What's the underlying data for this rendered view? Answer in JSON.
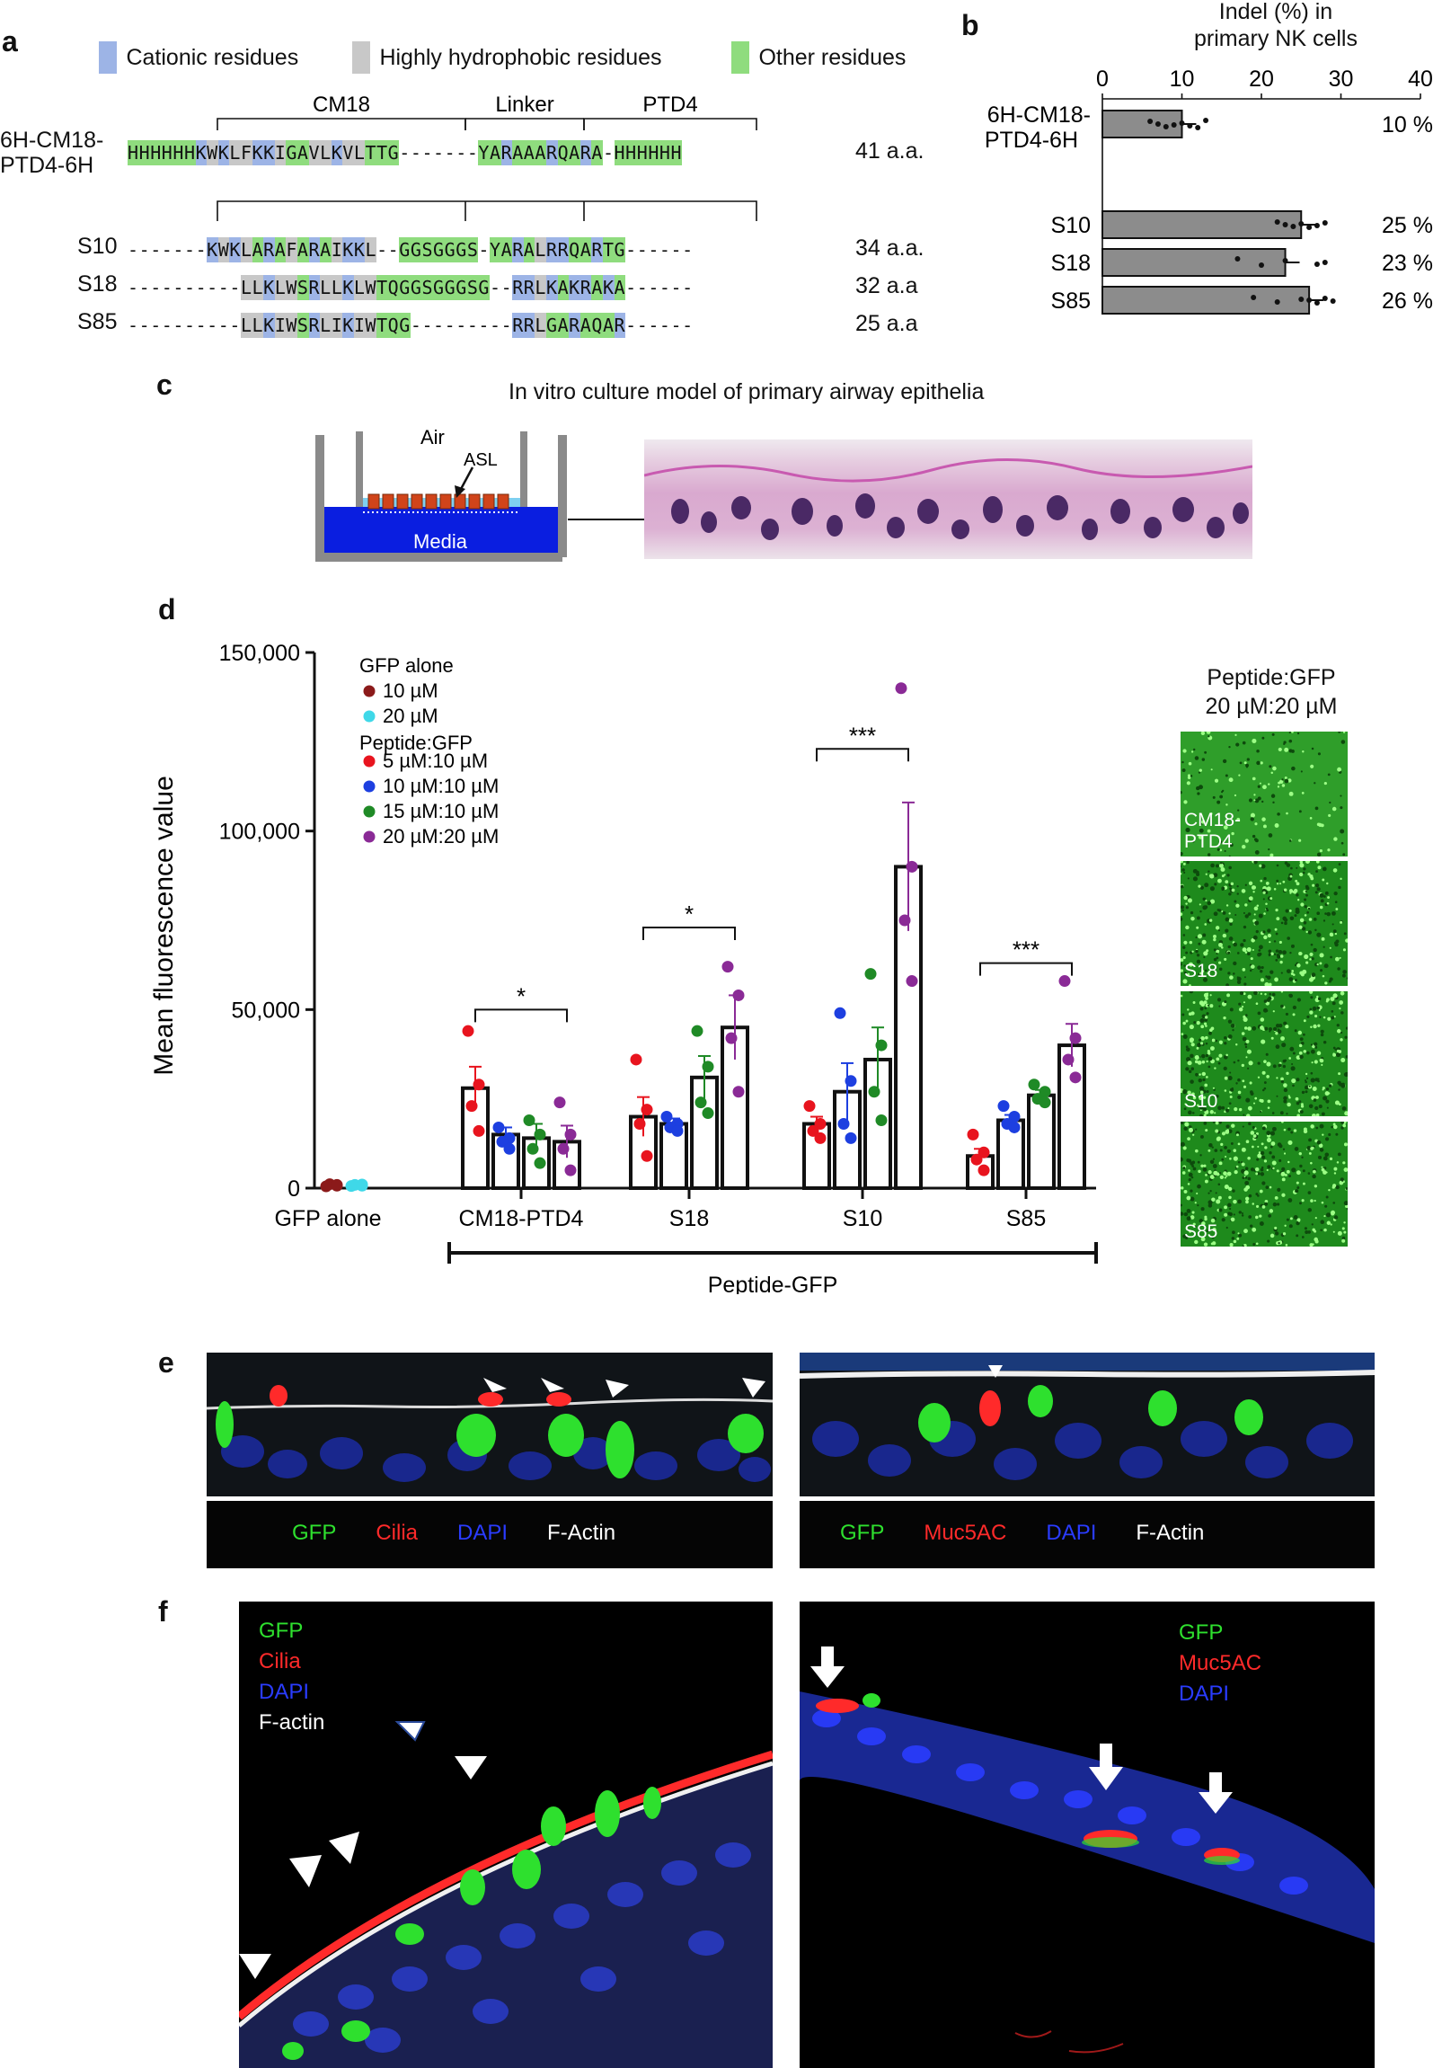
{
  "panels": {
    "a": "a",
    "b": "b",
    "c": "c",
    "d": "d",
    "e": "e",
    "f": "f"
  },
  "panel_a": {
    "legend": [
      {
        "label": "Cationic residues",
        "color": "#9db4e6"
      },
      {
        "label": "Highly hydrophobic residues",
        "color": "#c8c8c8"
      },
      {
        "label": "Other residues",
        "color": "#8fdc7e"
      }
    ],
    "domains": [
      "CM18",
      "Linker",
      "PTD4"
    ],
    "rows": [
      {
        "name": "6H-CM18-\nPTD4-6H",
        "seq": "HHHHHHKWKLFKKIGAVLKVLTTG-------YARAAARQARA-HHHHHH",
        "len": "41 a.a."
      },
      {
        "name": "S10",
        "seq": "-------KWKLARAFARAIKKL--GGSGGGS-YARALRRQARTG------",
        "len": "34 a.a."
      },
      {
        "name": "S18",
        "seq": "----------LLKLWSRLLKLWTQGGSGGGSG--RRLKAKRAKA------",
        "len": "32 a.a"
      },
      {
        "name": "S85",
        "seq": "----------LLKIWSRLIKIWTQG---------RRLGARAQAR------",
        "len": "25 a.a"
      }
    ]
  },
  "panel_b": {
    "title_line1": "Indel (%) in",
    "title_line2": "primary NK cells",
    "ticks": [
      "0",
      "10",
      "20",
      "30",
      "40"
    ],
    "bars": [
      {
        "label_line1": "6H-CM18-",
        "label_line2": "PTD4-6H",
        "value": 10,
        "pct": "10 %"
      },
      {
        "label_line1": "S10",
        "label_line2": "",
        "value": 25,
        "pct": "25 %"
      },
      {
        "label_line1": "S18",
        "label_line2": "",
        "value": 23,
        "pct": "23 %"
      },
      {
        "label_line1": "S85",
        "label_line2": "",
        "value": 26,
        "pct": "26 %"
      }
    ]
  },
  "panel_c": {
    "title": "In vitro culture model of primary airway epithelia",
    "air": "Air",
    "asl": "ASL",
    "media": "Media"
  },
  "chart_data": {
    "type": "bar",
    "ylabel": "Mean fluorescence value",
    "ylim": [
      0,
      150000
    ],
    "yticks": [
      "0",
      "50,000",
      "100,000",
      "150,000"
    ],
    "groups": [
      "GFP alone",
      "CM18-PTD4",
      "S18",
      "S10",
      "S85"
    ],
    "bracket_label": "Peptide-GFP",
    "legend_header1": "GFP alone",
    "legend_header2": "Peptide:GFP",
    "series": [
      {
        "name": "10 µM",
        "color": "#8b1a1a",
        "group": "GFP alone"
      },
      {
        "name": "20 µM",
        "color": "#3fd8e8",
        "group": "GFP alone"
      },
      {
        "name": "5 µM:10 µM",
        "color": "#e8141e",
        "group": "Peptide:GFP"
      },
      {
        "name": "10 µM:10 µM",
        "color": "#1d3fe0",
        "group": "Peptide:GFP"
      },
      {
        "name": "15 µM:10 µM",
        "color": "#1f8a26",
        "group": "Peptide:GFP"
      },
      {
        "name": "20 µM:20 µM",
        "color": "#8a2a96",
        "group": "Peptide:GFP"
      }
    ],
    "bars": [
      {
        "group": 0,
        "series": 0,
        "mean": 800,
        "sem": 300,
        "points": [
          500,
          900,
          1100,
          700
        ]
      },
      {
        "group": 0,
        "series": 1,
        "mean": 800,
        "sem": 300,
        "points": [
          600,
          1000,
          900,
          700
        ]
      },
      {
        "group": 1,
        "series": 2,
        "mean": 28000,
        "sem": 6000,
        "points": [
          44000,
          29000,
          23000,
          16000
        ]
      },
      {
        "group": 1,
        "series": 3,
        "mean": 15000,
        "sem": 2000,
        "points": [
          17000,
          14000,
          13000,
          11000
        ]
      },
      {
        "group": 1,
        "series": 4,
        "mean": 14000,
        "sem": 4000,
        "points": [
          19000,
          15000,
          11000,
          7000
        ]
      },
      {
        "group": 1,
        "series": 5,
        "mean": 13000,
        "sem": 4500,
        "points": [
          24000,
          15000,
          11000,
          5000
        ]
      },
      {
        "group": 2,
        "series": 2,
        "mean": 20000,
        "sem": 5500,
        "points": [
          36000,
          22000,
          18000,
          9000
        ]
      },
      {
        "group": 2,
        "series": 3,
        "mean": 18000,
        "sem": 1500,
        "points": [
          20000,
          18000,
          17000,
          16000
        ]
      },
      {
        "group": 2,
        "series": 4,
        "mean": 31000,
        "sem": 6000,
        "points": [
          44000,
          34000,
          24000,
          21000
        ]
      },
      {
        "group": 2,
        "series": 5,
        "mean": 45000,
        "sem": 9000,
        "points": [
          62000,
          54000,
          42000,
          27000
        ]
      },
      {
        "group": 3,
        "series": 2,
        "mean": 18000,
        "sem": 2000,
        "points": [
          23000,
          18000,
          16000,
          14000
        ]
      },
      {
        "group": 3,
        "series": 3,
        "mean": 27000,
        "sem": 8000,
        "points": [
          49000,
          30000,
          18000,
          14000
        ]
      },
      {
        "group": 3,
        "series": 4,
        "mean": 36000,
        "sem": 9000,
        "points": [
          60000,
          40000,
          27000,
          19000
        ]
      },
      {
        "group": 3,
        "series": 5,
        "mean": 90000,
        "sem": 18000,
        "points": [
          140000,
          90000,
          75000,
          58000
        ]
      },
      {
        "group": 4,
        "series": 2,
        "mean": 9000,
        "sem": 2000,
        "points": [
          15000,
          10000,
          8000,
          5000
        ]
      },
      {
        "group": 4,
        "series": 3,
        "mean": 19000,
        "sem": 1500,
        "points": [
          23000,
          20000,
          18000,
          17000
        ]
      },
      {
        "group": 4,
        "series": 4,
        "mean": 26000,
        "sem": 1500,
        "points": [
          29000,
          27000,
          25000,
          24000
        ]
      },
      {
        "group": 4,
        "series": 5,
        "mean": 40000,
        "sem": 6000,
        "points": [
          58000,
          42000,
          36000,
          31000
        ]
      }
    ],
    "significance": [
      {
        "group": 1,
        "label": "*"
      },
      {
        "group": 2,
        "label": "*"
      },
      {
        "group": 3,
        "label": "***"
      },
      {
        "group": 4,
        "label": "***"
      }
    ]
  },
  "panel_d_images": {
    "title_line1": "Peptide:GFP",
    "title_line2": "20 µM:20 µM",
    "tiles": [
      {
        "label_line1": "CM18-",
        "label_line2": "PTD4"
      },
      {
        "label_line1": "S18",
        "label_line2": ""
      },
      {
        "label_line1": "S10",
        "label_line2": ""
      },
      {
        "label_line1": "S85",
        "label_line2": ""
      }
    ]
  },
  "panel_e": {
    "left_legend": [
      {
        "text": "GFP",
        "color": "#2ee02e"
      },
      {
        "text": "Cilia",
        "color": "#ff2a2a"
      },
      {
        "text": "DAPI",
        "color": "#2a3cff"
      },
      {
        "text": "F-Actin",
        "color": "#ffffff"
      }
    ],
    "right_legend": [
      {
        "text": "GFP",
        "color": "#2ee02e"
      },
      {
        "text": "Muc5AC",
        "color": "#ff2a2a"
      },
      {
        "text": "DAPI",
        "color": "#2a3cff"
      },
      {
        "text": "F-Actin",
        "color": "#ffffff"
      }
    ]
  },
  "panel_f": {
    "left_legend": [
      {
        "text": "GFP",
        "color": "#2ee02e"
      },
      {
        "text": "Cilia",
        "color": "#ff2a2a"
      },
      {
        "text": "DAPI",
        "color": "#2a3cff"
      },
      {
        "text": "F-actin",
        "color": "#ffffff"
      }
    ],
    "right_legend": [
      {
        "text": "GFP",
        "color": "#2ee02e"
      },
      {
        "text": "Muc5AC",
        "color": "#ff2a2a"
      },
      {
        "text": "DAPI",
        "color": "#2a3cff"
      }
    ]
  }
}
